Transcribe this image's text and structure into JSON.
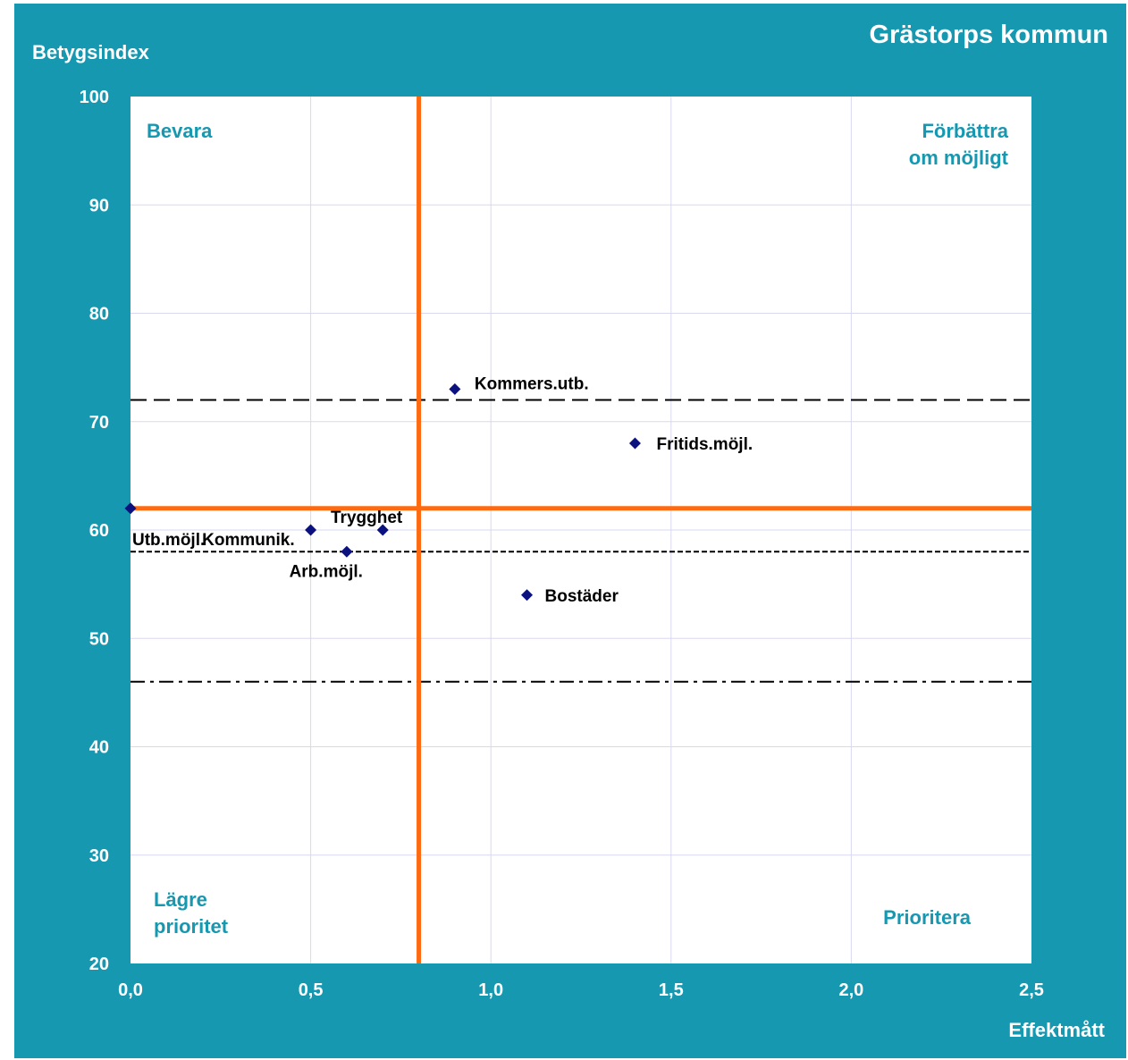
{
  "chart_data": {
    "type": "scatter",
    "title": "Grästorps kommun",
    "ylabel": "Betygsindex",
    "xlabel": "Effektmått",
    "xlim": [
      0,
      2.5
    ],
    "ylim": [
      20,
      100
    ],
    "xticks": [
      "0,0",
      "0,5",
      "1,0",
      "1,5",
      "2,0",
      "2,5"
    ],
    "yticks": [
      "20",
      "30",
      "40",
      "50",
      "60",
      "70",
      "80",
      "90",
      "100"
    ],
    "grid": true,
    "points": [
      {
        "label": "Utb.möjl.",
        "x": 0.0,
        "y": 62
      },
      {
        "label": "Kommunik.",
        "x": 0.5,
        "y": 60
      },
      {
        "label": "Arb.möjl.",
        "x": 0.6,
        "y": 58
      },
      {
        "label": "Trygghet",
        "x": 0.7,
        "y": 60
      },
      {
        "label": "Kommers.utb.",
        "x": 0.9,
        "y": 73
      },
      {
        "label": "Bostäder",
        "x": 1.1,
        "y": 54
      },
      {
        "label": "Fritids.möjl.",
        "x": 1.4,
        "y": 68
      }
    ],
    "quadrant_lines": {
      "x": 0.8,
      "y": 62
    },
    "reference_lines": [
      {
        "y": 72,
        "style": "long-dash"
      },
      {
        "y": 58,
        "style": "short-dash"
      },
      {
        "y": 46,
        "style": "dash-dot"
      }
    ],
    "quadrant_labels": {
      "top_left": [
        "Bevara"
      ],
      "top_right": [
        "Förbättra",
        "om möjligt"
      ],
      "bottom_left": [
        "Lägre",
        "prioritet"
      ],
      "bottom_right": [
        "Prioritera"
      ]
    },
    "colors": {
      "background": "#1698b0",
      "plot_area": "#ffffff",
      "gridline": "#d8d8f0",
      "quadrant_line": "#ff6a10",
      "marker": "#0b1280",
      "quadrant_text": "#1698b0"
    }
  }
}
